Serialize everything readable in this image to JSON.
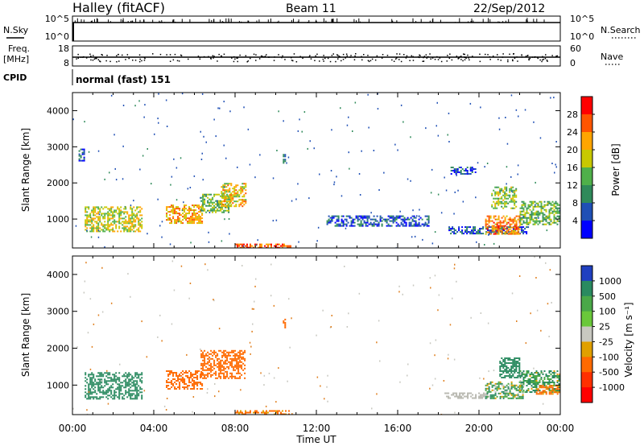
{
  "header": {
    "station_title": "Halley (fitACF)",
    "beam": "Beam 11",
    "date": "22/Sep/2012"
  },
  "summary_panels": {
    "nsky_label": "N.Sky",
    "nsky_ticks": [
      "10^5",
      "10^0"
    ],
    "nsearch_label": "N.Search",
    "nsearch_ticks": [
      "10^5",
      "10^0"
    ],
    "freq_label_line1": "Freq.",
    "freq_label_line2": "[MHz]",
    "freq_ticks": [
      "18",
      "8"
    ],
    "nave_label": "Nave",
    "nave_ticks": [
      "60",
      "0"
    ],
    "cpid_label": "CPID",
    "cpid_value": "normal (fast) 151"
  },
  "colors": {
    "power_scale": [
      "#0000ff",
      "#1f4fb5",
      "#2f8a5a",
      "#4fb04a",
      "#c8c800",
      "#ffa500",
      "#ff5500",
      "#ff0000"
    ],
    "velocity_scale": [
      "#2040c0",
      "#2a8a60",
      "#4aa848",
      "#6ac83a",
      "#c8c8c0",
      "#e0a000",
      "#ff6a00",
      "#ff3000",
      "#ff0000"
    ],
    "ground_scatter": "#b8b8b0"
  },
  "chart_data": [
    {
      "type": "heatmap",
      "name": "power",
      "xlabel": "",
      "ylabel": "Slant Range [km]",
      "x_range_hours": [
        0,
        24
      ],
      "y_range_km": [
        200,
        4500
      ],
      "y_ticks": [
        "4000",
        "3000",
        "2000",
        "1000"
      ],
      "colorbar_label": "Power [dB]",
      "colorbar_ticks": [
        "28",
        "24",
        "20",
        "16",
        "12",
        "8",
        "4"
      ],
      "colorbar_range": [
        0,
        32
      ],
      "patches": [
        {
          "t0": 0.6,
          "t1": 3.4,
          "r0": 650,
          "r1": 1350,
          "level": 18
        },
        {
          "t0": 4.6,
          "t1": 6.4,
          "r0": 900,
          "r1": 1400,
          "level": 22
        },
        {
          "t0": 6.3,
          "t1": 7.8,
          "r0": 1200,
          "r1": 1700,
          "level": 14
        },
        {
          "t0": 7.3,
          "t1": 8.5,
          "r0": 1350,
          "r1": 2000,
          "level": 20
        },
        {
          "t0": 8.0,
          "t1": 10.7,
          "r0": 200,
          "r1": 320,
          "level": 26
        },
        {
          "t0": 12.5,
          "t1": 17.5,
          "r0": 800,
          "r1": 1100,
          "level": 6
        },
        {
          "t0": 18.5,
          "t1": 22.4,
          "r0": 600,
          "r1": 800,
          "level": 6
        },
        {
          "t0": 20.3,
          "t1": 22.0,
          "r0": 600,
          "r1": 1100,
          "level": 24
        },
        {
          "t0": 20.6,
          "t1": 21.8,
          "r0": 1300,
          "r1": 1900,
          "level": 16
        },
        {
          "t0": 22.0,
          "t1": 24.0,
          "r0": 850,
          "r1": 1500,
          "level": 14
        },
        {
          "t0": 0.3,
          "t1": 0.6,
          "r0": 2600,
          "r1": 2950,
          "level": 6
        },
        {
          "t0": 10.35,
          "t1": 10.5,
          "r0": 2500,
          "r1": 2800,
          "level": 8
        },
        {
          "t0": 18.6,
          "t1": 19.8,
          "r0": 2250,
          "r1": 2450,
          "level": 6
        }
      ]
    },
    {
      "type": "heatmap",
      "name": "velocity",
      "xlabel": "Time UT",
      "ylabel": "Slant Range [km]",
      "x_range_hours": [
        0,
        24
      ],
      "x_ticks": [
        "00:00",
        "04:00",
        "08:00",
        "12:00",
        "16:00",
        "20:00",
        "00:00"
      ],
      "y_range_km": [
        200,
        4500
      ],
      "y_ticks": [
        "4000",
        "3000",
        "2000",
        "1000"
      ],
      "colorbar_label": "Velocity [m s⁻¹]",
      "colorbar_ticks": [
        "1000",
        "500",
        "100",
        "25",
        "-25",
        "-100",
        "-500",
        "-1000"
      ],
      "patches": [
        {
          "t0": 0.6,
          "t1": 3.4,
          "r0": 650,
          "r1": 1350,
          "v": 300
        },
        {
          "t0": 4.6,
          "t1": 6.4,
          "r0": 900,
          "r1": 1400,
          "v": -300
        },
        {
          "t0": 6.3,
          "t1": 8.5,
          "r0": 1200,
          "r1": 1950,
          "v": -300
        },
        {
          "t0": 8.0,
          "t1": 10.7,
          "r0": 200,
          "r1": 320,
          "v": -150
        },
        {
          "t0": 18.3,
          "t1": 20.5,
          "r0": 650,
          "r1": 800,
          "v": 0
        },
        {
          "t0": 20.3,
          "t1": 22.2,
          "r0": 650,
          "r1": 1100,
          "v": 80
        },
        {
          "t0": 21.0,
          "t1": 22.0,
          "r0": 1200,
          "r1": 1750,
          "v": 300
        },
        {
          "t0": 22.0,
          "t1": 24.0,
          "r0": 800,
          "r1": 1400,
          "v": 120
        },
        {
          "t0": 22.8,
          "t1": 24.0,
          "r0": 750,
          "r1": 1000,
          "v": -150
        },
        {
          "t0": 10.35,
          "t1": 10.5,
          "r0": 2500,
          "r1": 2800,
          "v": -300
        }
      ]
    }
  ]
}
